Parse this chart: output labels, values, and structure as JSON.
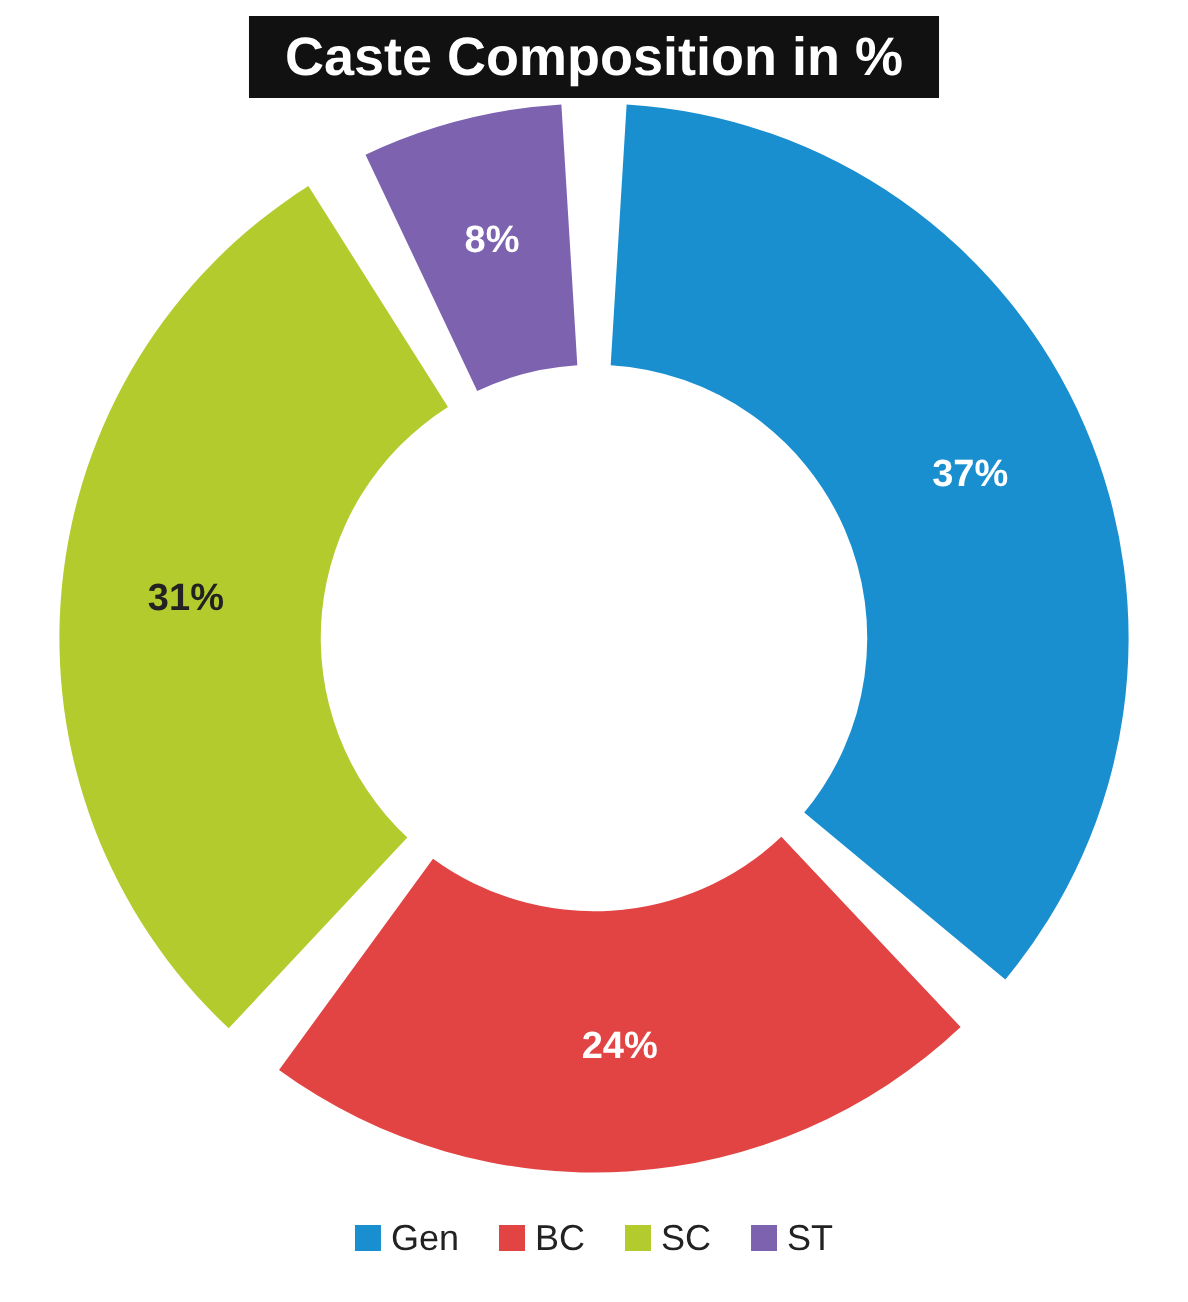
{
  "chart_data": {
    "type": "donut",
    "title": "Caste Composition in %",
    "categories": [
      "Gen",
      "BC",
      "SC",
      "ST"
    ],
    "values": [
      37,
      24,
      31,
      8
    ],
    "colors": [
      "#1a8fd0",
      "#e24444",
      "#b3cb2d",
      "#7d62b0"
    ],
    "value_labels": [
      "37%",
      "24%",
      "31%",
      "8%"
    ],
    "legend": "bottom"
  }
}
